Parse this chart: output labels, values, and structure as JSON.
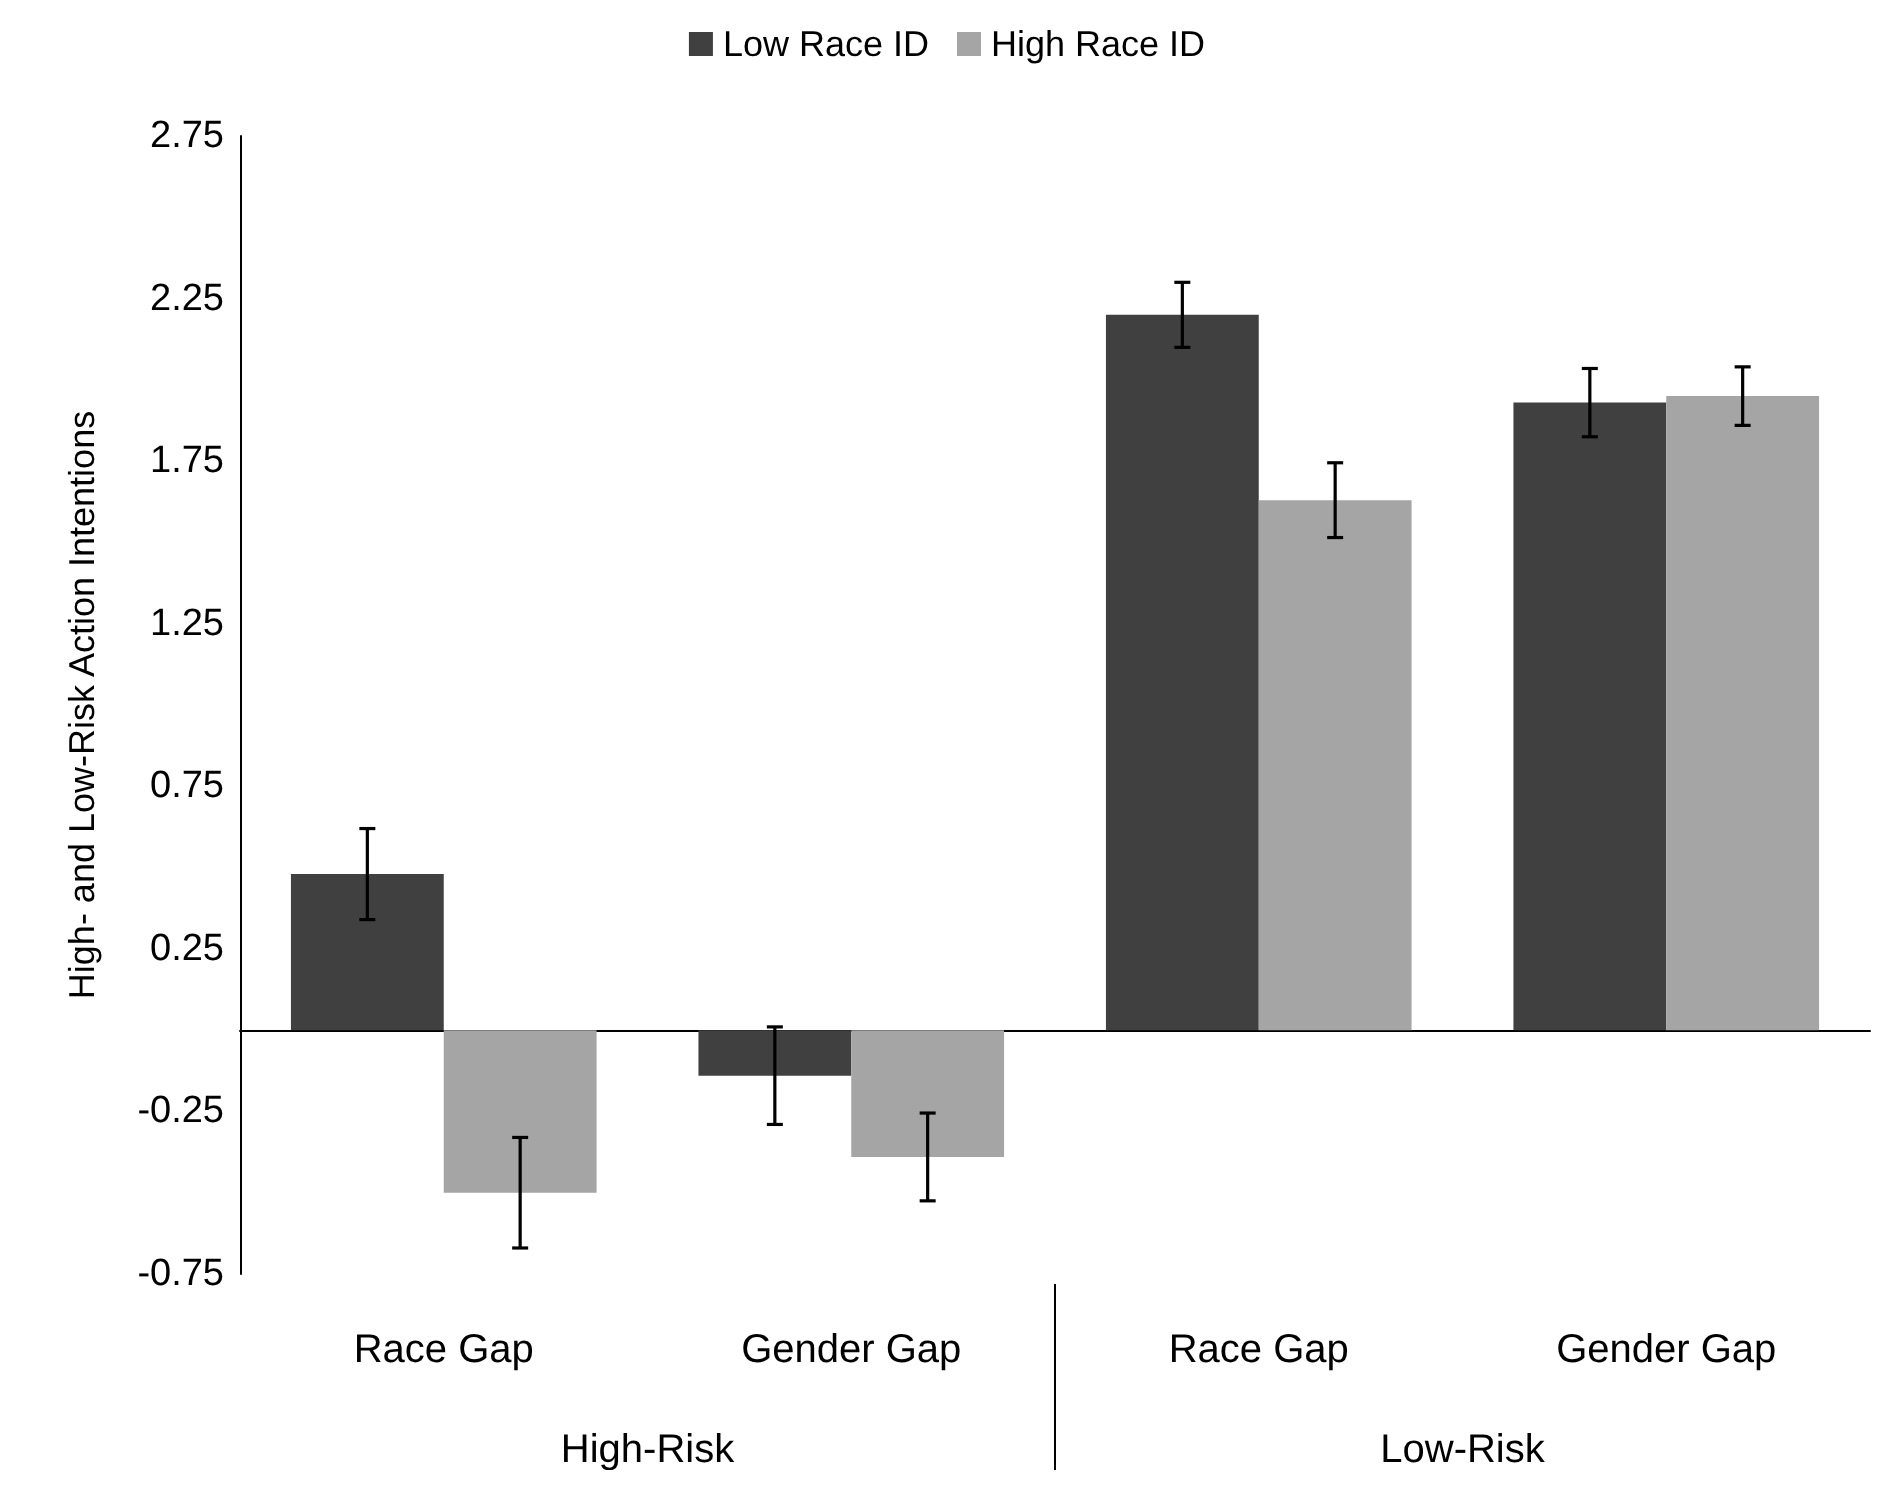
{
  "chart_data": {
    "type": "bar",
    "ylabel": "High- and Low-Risk Action Intentions",
    "categories": [
      "Race Gap",
      "Gender Gap",
      "Race Gap",
      "Gender Gap"
    ],
    "series": [
      {
        "name": "Low Race ID",
        "color": "#404040",
        "values": [
          0.48,
          -0.14,
          2.2,
          1.93
        ],
        "errors": [
          0.14,
          0.15,
          0.1,
          0.105
        ]
      },
      {
        "name": "High Race ID",
        "color": "#a5a5a5",
        "values": [
          -0.5,
          -0.39,
          1.63,
          1.95
        ],
        "errors": [
          0.17,
          0.135,
          0.115,
          0.09
        ]
      }
    ],
    "annotations": [
      "High-Risk",
      "Low-Risk"
    ],
    "ylim": [
      -0.75,
      2.75
    ],
    "yticks": [
      -0.75,
      -0.25,
      0.25,
      0.75,
      1.25,
      1.75,
      2.25,
      2.75
    ],
    "grid": false,
    "legend": "top"
  }
}
